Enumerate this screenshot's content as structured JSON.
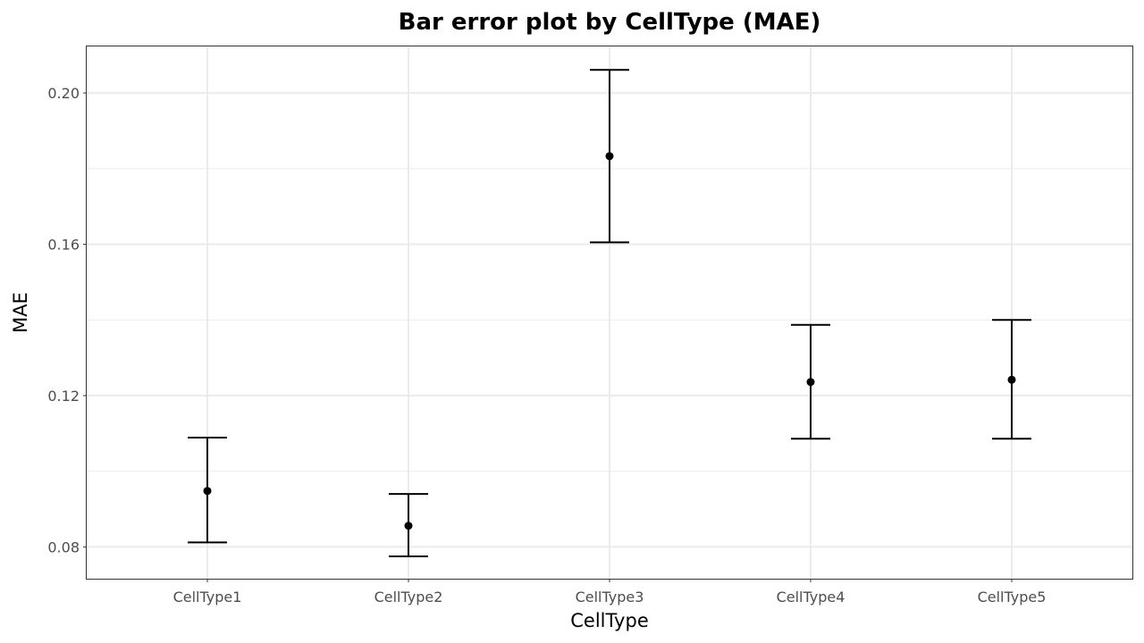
{
  "chart_data": {
    "type": "errorbar",
    "title": "Bar error plot by CellType (MAE)",
    "xlabel": "CellType",
    "ylabel": "MAE",
    "categories": [
      "CellType1",
      "CellType2",
      "CellType3",
      "CellType4",
      "CellType5"
    ],
    "values": [
      0.0948,
      0.0856,
      0.1833,
      0.1236,
      0.1242
    ],
    "lower": [
      0.0812,
      0.0775,
      0.1605,
      0.1086,
      0.1086
    ],
    "upper": [
      0.1089,
      0.094,
      0.2061,
      0.1387,
      0.14
    ],
    "ylim": [
      0.0716,
      0.2123
    ],
    "yticks": [
      0.08,
      0.12,
      0.16,
      0.2
    ],
    "ytick_labels": [
      "0.08",
      "0.12",
      "0.16",
      "0.20"
    ],
    "grid": true,
    "colors": {
      "mark": "#000000",
      "grid": "#ebebeb",
      "panel_border": "#333333",
      "tick_text": "#4d4d4d"
    }
  }
}
